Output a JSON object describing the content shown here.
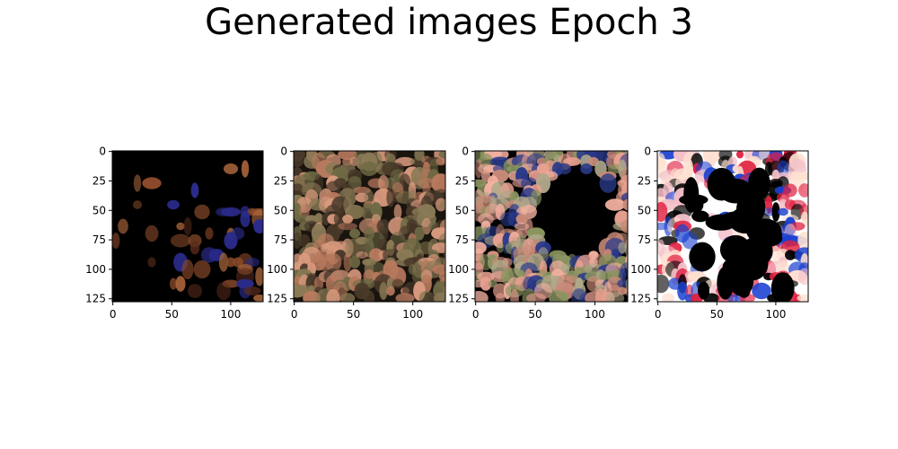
{
  "title": "Generated images Epoch 3",
  "chart_data": [
    {
      "type": "heatmap",
      "content": "generated image 1 (mostly dark with scattered orange-brown blobs)",
      "palette": {
        "base": "#000000",
        "accents": [
          "#5a2c1b",
          "#8a4a2a",
          "#b06a3e",
          "#2a2b8a"
        ]
      },
      "xlim": [
        0,
        128
      ],
      "ylim": [
        128,
        0
      ],
      "xticks": [
        0,
        50,
        100
      ],
      "yticks": [
        0,
        25,
        50,
        75,
        100,
        125
      ],
      "xtick_labels": [
        "0",
        "50",
        "100"
      ],
      "ytick_labels": [
        "0",
        "25",
        "50",
        "75",
        "100",
        "125"
      ]
    },
    {
      "type": "heatmap",
      "content": "generated image 2 (dark with olive-green and salmon patches)",
      "palette": {
        "base": "#1a140e",
        "accents": [
          "#6f6a45",
          "#8a7a55",
          "#b87a5e",
          "#d99a7e",
          "#4a3a2a"
        ]
      },
      "xlim": [
        0,
        128
      ],
      "ylim": [
        128,
        0
      ],
      "xticks": [
        0,
        50,
        100
      ],
      "yticks": [
        0,
        25,
        50,
        75,
        100,
        125
      ],
      "xtick_labels": [
        "0",
        "50",
        "100"
      ],
      "ytick_labels": [
        "0",
        "25",
        "50",
        "75",
        "100",
        "125"
      ]
    },
    {
      "type": "heatmap",
      "content": "generated image 3 (salmon-pink with olive, large black center blob)",
      "palette": {
        "base": "#000000",
        "accents": [
          "#c98a78",
          "#e8a090",
          "#8a9560",
          "#b0a88a",
          "#2a3a8a",
          "#f2b0a0"
        ]
      },
      "xlim": [
        0,
        128
      ],
      "ylim": [
        128,
        0
      ],
      "xticks": [
        0,
        50,
        100
      ],
      "yticks": [
        0,
        25,
        50,
        75,
        100,
        125
      ],
      "xtick_labels": [
        "0",
        "50",
        "100"
      ],
      "ytick_labels": [
        "0",
        "25",
        "50",
        "75",
        "100",
        "125"
      ]
    },
    {
      "type": "heatmap",
      "content": "generated image 4 (saturated white and black with pink and blue spots)",
      "palette": {
        "base": "#ffffff",
        "accents": [
          "#000000",
          "#f4c0c8",
          "#e02040",
          "#1a40d0",
          "#ffe0d0"
        ]
      },
      "xlim": [
        0,
        128
      ],
      "ylim": [
        128,
        0
      ],
      "xticks": [
        0,
        50,
        100
      ],
      "yticks": [
        0,
        25,
        50,
        75,
        100,
        125
      ],
      "xtick_labels": [
        "0",
        "50",
        "100"
      ],
      "ytick_labels": [
        "0",
        "25",
        "50",
        "75",
        "100",
        "125"
      ]
    }
  ]
}
